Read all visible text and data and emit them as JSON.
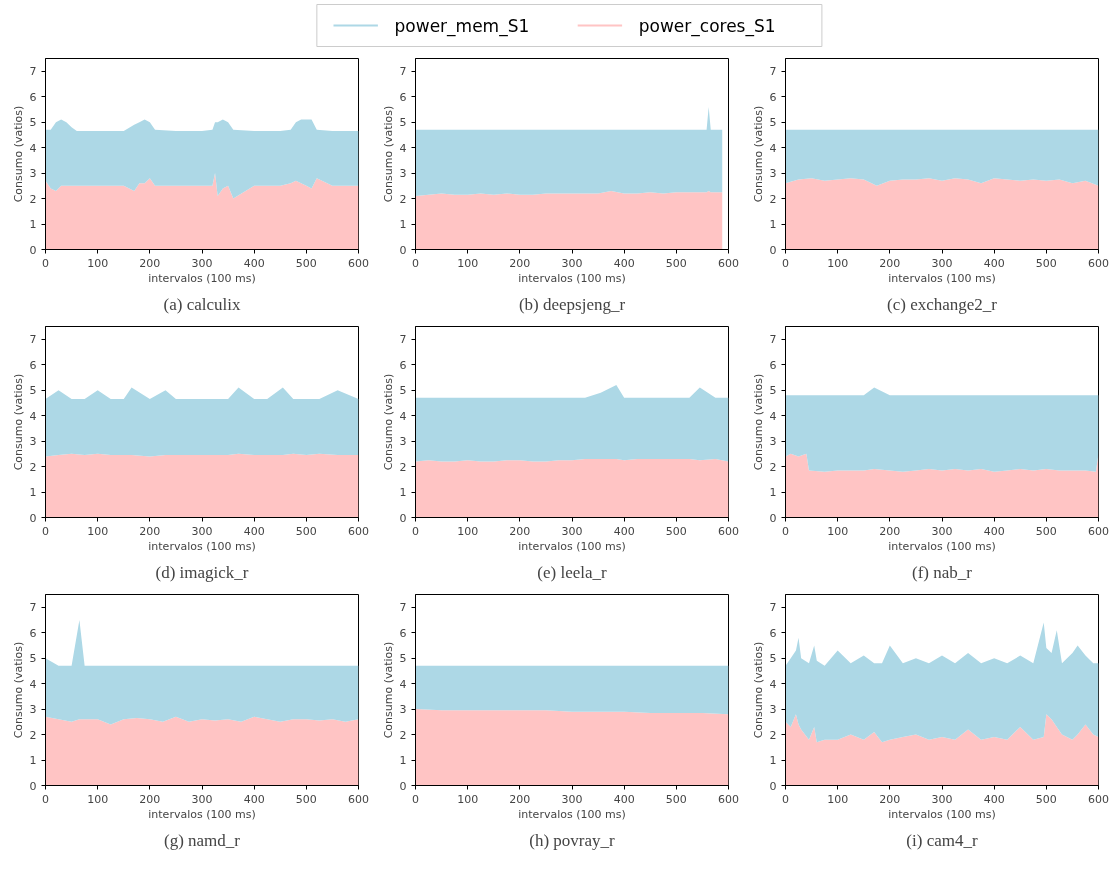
{
  "chart_data": [
    {
      "type": "area",
      "stacked": true,
      "title": "(a) calculix",
      "xlabel": "intervalos (100 ms)",
      "ylabel": "Consumo (vatios)",
      "xlim": [
        0,
        600
      ],
      "xticks": [
        0,
        100,
        200,
        300,
        400,
        500,
        600
      ],
      "ylim": [
        0,
        7.5
      ],
      "yticks": [
        0,
        1,
        2,
        3,
        4,
        5,
        6,
        7
      ],
      "legend": "top",
      "x": [
        0,
        10,
        20,
        30,
        40,
        50,
        60,
        100,
        150,
        170,
        180,
        190,
        200,
        210,
        250,
        300,
        320,
        325,
        330,
        340,
        350,
        360,
        400,
        450,
        470,
        480,
        490,
        500,
        510,
        520,
        550,
        600
      ],
      "series": [
        {
          "name": "power_cores_S1",
          "color": "#ffc4c4",
          "values": [
            2.7,
            2.4,
            2.3,
            2.5,
            2.5,
            2.5,
            2.5,
            2.5,
            2.5,
            2.3,
            2.6,
            2.6,
            2.8,
            2.5,
            2.5,
            2.5,
            2.5,
            3.0,
            2.1,
            2.4,
            2.5,
            2.0,
            2.5,
            2.5,
            2.6,
            2.7,
            2.6,
            2.5,
            2.4,
            2.8,
            2.5,
            2.5
          ]
        },
        {
          "name": "power_mem_S1",
          "color": "#add8e6",
          "values": [
            2.0,
            2.3,
            2.7,
            2.6,
            2.5,
            2.3,
            2.15,
            2.15,
            2.15,
            2.6,
            2.4,
            2.5,
            2.2,
            2.2,
            2.15,
            2.15,
            2.2,
            2.0,
            2.9,
            2.7,
            2.5,
            2.7,
            2.15,
            2.15,
            2.1,
            2.3,
            2.5,
            2.6,
            2.7,
            1.9,
            2.15,
            2.15
          ]
        }
      ]
    },
    {
      "type": "area",
      "stacked": true,
      "title": "(b) deepsjeng_r",
      "xlabel": "intervalos (100 ms)",
      "ylabel": "Consumo (vatios)",
      "xlim": [
        0,
        600
      ],
      "xticks": [
        0,
        100,
        200,
        300,
        400,
        500,
        600
      ],
      "ylim": [
        0,
        7.5
      ],
      "yticks": [
        0,
        1,
        2,
        3,
        4,
        5,
        6,
        7
      ],
      "x": [
        0,
        25,
        50,
        75,
        100,
        125,
        150,
        175,
        200,
        225,
        250,
        275,
        300,
        325,
        350,
        375,
        400,
        425,
        450,
        475,
        500,
        525,
        550,
        558,
        562,
        566,
        588
      ],
      "series": [
        {
          "color": "#ffc4c4",
          "values": [
            2.1,
            2.15,
            2.2,
            2.15,
            2.15,
            2.2,
            2.15,
            2.2,
            2.15,
            2.15,
            2.2,
            2.2,
            2.2,
            2.2,
            2.2,
            2.3,
            2.2,
            2.2,
            2.25,
            2.2,
            2.25,
            2.25,
            2.25,
            2.25,
            2.3,
            2.25,
            2.25
          ]
        },
        {
          "color": "#add8e6",
          "values": [
            2.6,
            2.55,
            2.5,
            2.55,
            2.55,
            2.5,
            2.55,
            2.5,
            2.55,
            2.55,
            2.5,
            2.5,
            2.5,
            2.5,
            2.5,
            2.4,
            2.5,
            2.5,
            2.45,
            2.5,
            2.45,
            2.45,
            2.45,
            2.45,
            3.3,
            2.45,
            2.45
          ]
        }
      ]
    },
    {
      "type": "area",
      "stacked": true,
      "title": "(c) exchange2_r",
      "xlabel": "intervalos (100 ms)",
      "ylabel": "Consumo (vatios)",
      "xlim": [
        0,
        600
      ],
      "xticks": [
        0,
        100,
        200,
        300,
        400,
        500,
        600
      ],
      "ylim": [
        0,
        7.5
      ],
      "yticks": [
        0,
        1,
        2,
        3,
        4,
        5,
        6,
        7
      ],
      "x": [
        0,
        25,
        50,
        75,
        100,
        125,
        150,
        175,
        200,
        225,
        250,
        275,
        300,
        325,
        350,
        375,
        400,
        425,
        450,
        475,
        500,
        525,
        550,
        575,
        600
      ],
      "series": [
        {
          "color": "#ffc4c4",
          "values": [
            2.6,
            2.75,
            2.8,
            2.7,
            2.75,
            2.8,
            2.75,
            2.5,
            2.7,
            2.75,
            2.75,
            2.8,
            2.7,
            2.8,
            2.75,
            2.6,
            2.8,
            2.75,
            2.7,
            2.75,
            2.7,
            2.75,
            2.6,
            2.7,
            2.5
          ]
        },
        {
          "color": "#add8e6",
          "values": [
            2.1,
            1.95,
            1.9,
            2.0,
            1.95,
            1.9,
            1.95,
            2.2,
            2.0,
            1.95,
            1.95,
            1.9,
            2.0,
            1.9,
            1.95,
            2.1,
            1.9,
            1.95,
            2.0,
            1.95,
            2.0,
            1.95,
            2.1,
            2.0,
            2.2
          ]
        }
      ]
    },
    {
      "type": "area",
      "stacked": true,
      "title": "(d) imagick_r",
      "xlabel": "intervalos (100 ms)",
      "ylabel": "Consumo (vatios)",
      "xlim": [
        0,
        600
      ],
      "xticks": [
        0,
        100,
        200,
        300,
        400,
        500,
        600
      ],
      "ylim": [
        0,
        7.5
      ],
      "yticks": [
        0,
        1,
        2,
        3,
        4,
        5,
        6,
        7
      ],
      "x": [
        0,
        25,
        50,
        75,
        100,
        125,
        150,
        165,
        200,
        230,
        250,
        275,
        300,
        325,
        350,
        370,
        400,
        425,
        455,
        475,
        500,
        525,
        560,
        600
      ],
      "series": [
        {
          "color": "#ffc4c4",
          "values": [
            2.4,
            2.45,
            2.5,
            2.45,
            2.5,
            2.45,
            2.45,
            2.45,
            2.4,
            2.45,
            2.45,
            2.45,
            2.45,
            2.45,
            2.45,
            2.5,
            2.45,
            2.45,
            2.45,
            2.5,
            2.45,
            2.5,
            2.45,
            2.45
          ]
        },
        {
          "color": "#add8e6",
          "values": [
            2.25,
            2.55,
            2.15,
            2.2,
            2.5,
            2.2,
            2.2,
            2.65,
            2.25,
            2.55,
            2.2,
            2.2,
            2.2,
            2.2,
            2.2,
            2.6,
            2.2,
            2.2,
            2.65,
            2.15,
            2.2,
            2.15,
            2.55,
            2.2
          ]
        }
      ]
    },
    {
      "type": "area",
      "stacked": true,
      "title": "(e) leela_r",
      "xlabel": "intervalos (100 ms)",
      "ylabel": "Consumo (vatios)",
      "xlim": [
        0,
        600
      ],
      "xticks": [
        0,
        100,
        200,
        300,
        400,
        500,
        600
      ],
      "ylim": [
        0,
        7.5
      ],
      "yticks": [
        0,
        1,
        2,
        3,
        4,
        5,
        6,
        7
      ],
      "x": [
        0,
        25,
        50,
        75,
        100,
        125,
        150,
        175,
        200,
        225,
        250,
        275,
        300,
        325,
        355,
        385,
        400,
        425,
        450,
        475,
        500,
        525,
        545,
        575,
        600
      ],
      "series": [
        {
          "color": "#ffc4c4",
          "values": [
            2.2,
            2.25,
            2.2,
            2.2,
            2.25,
            2.2,
            2.2,
            2.25,
            2.25,
            2.2,
            2.2,
            2.25,
            2.25,
            2.3,
            2.3,
            2.3,
            2.25,
            2.3,
            2.3,
            2.3,
            2.3,
            2.3,
            2.25,
            2.3,
            2.2
          ]
        },
        {
          "color": "#add8e6",
          "values": [
            2.5,
            2.45,
            2.5,
            2.5,
            2.45,
            2.5,
            2.5,
            2.45,
            2.45,
            2.5,
            2.5,
            2.45,
            2.45,
            2.4,
            2.6,
            2.9,
            2.45,
            2.4,
            2.4,
            2.4,
            2.4,
            2.4,
            2.85,
            2.4,
            2.5
          ]
        }
      ]
    },
    {
      "type": "area",
      "stacked": true,
      "title": "(f) nab_r",
      "xlabel": "intervalos (100 ms)",
      "ylabel": "Consumo (vatios)",
      "xlim": [
        0,
        600
      ],
      "xticks": [
        0,
        100,
        200,
        300,
        400,
        500,
        600
      ],
      "ylim": [
        0,
        7.5
      ],
      "yticks": [
        0,
        1,
        2,
        3,
        4,
        5,
        6,
        7
      ],
      "x": [
        0,
        10,
        25,
        40,
        45,
        75,
        100,
        125,
        150,
        170,
        200,
        225,
        250,
        275,
        300,
        325,
        350,
        375,
        400,
        425,
        450,
        475,
        500,
        525,
        550,
        575,
        595,
        600
      ],
      "series": [
        {
          "color": "#ffc4c4",
          "values": [
            2.4,
            2.5,
            2.4,
            2.5,
            1.85,
            1.8,
            1.85,
            1.85,
            1.85,
            1.9,
            1.85,
            1.8,
            1.85,
            1.9,
            1.85,
            1.9,
            1.85,
            1.9,
            1.8,
            1.85,
            1.9,
            1.85,
            1.9,
            1.85,
            1.85,
            1.85,
            1.8,
            2.5
          ]
        },
        {
          "color": "#add8e6",
          "values": [
            2.4,
            2.3,
            2.4,
            2.3,
            2.95,
            3.0,
            2.95,
            2.95,
            2.95,
            3.2,
            2.95,
            3.0,
            2.95,
            2.9,
            2.95,
            2.9,
            2.95,
            2.9,
            3.0,
            2.95,
            2.9,
            2.95,
            2.9,
            2.95,
            2.95,
            2.95,
            3.0,
            2.3
          ]
        }
      ]
    },
    {
      "type": "area",
      "stacked": true,
      "title": "(g) namd_r",
      "xlabel": "intervalos (100 ms)",
      "ylabel": "Consumo (vatios)",
      "xlim": [
        0,
        600
      ],
      "xticks": [
        0,
        100,
        200,
        300,
        400,
        500,
        600
      ],
      "ylim": [
        0,
        7.5
      ],
      "yticks": [
        0,
        1,
        2,
        3,
        4,
        5,
        6,
        7
      ],
      "x": [
        0,
        25,
        50,
        65,
        75,
        100,
        125,
        150,
        175,
        200,
        225,
        250,
        275,
        300,
        325,
        350,
        375,
        400,
        425,
        450,
        475,
        500,
        525,
        550,
        575,
        600
      ],
      "series": [
        {
          "color": "#ffc4c4",
          "values": [
            2.7,
            2.6,
            2.5,
            2.6,
            2.6,
            2.6,
            2.4,
            2.6,
            2.65,
            2.6,
            2.5,
            2.7,
            2.5,
            2.6,
            2.55,
            2.6,
            2.5,
            2.7,
            2.6,
            2.5,
            2.6,
            2.6,
            2.55,
            2.6,
            2.5,
            2.6
          ]
        },
        {
          "color": "#add8e6",
          "values": [
            2.3,
            2.1,
            2.2,
            3.9,
            2.1,
            2.1,
            2.3,
            2.1,
            2.05,
            2.1,
            2.2,
            2.0,
            2.2,
            2.1,
            2.15,
            2.1,
            2.2,
            2.0,
            2.1,
            2.2,
            2.1,
            2.1,
            2.15,
            2.1,
            2.2,
            2.1
          ]
        }
      ]
    },
    {
      "type": "area",
      "stacked": true,
      "title": "(h) povray_r",
      "xlabel": "intervalos (100 ms)",
      "ylabel": "Consumo (vatios)",
      "xlim": [
        0,
        600
      ],
      "xticks": [
        0,
        100,
        200,
        300,
        400,
        500,
        600
      ],
      "ylim": [
        0,
        7.5
      ],
      "yticks": [
        0,
        1,
        2,
        3,
        4,
        5,
        6,
        7
      ],
      "x": [
        0,
        50,
        100,
        150,
        200,
        250,
        300,
        350,
        400,
        450,
        500,
        550,
        600
      ],
      "series": [
        {
          "color": "#ffc4c4",
          "values": [
            3.0,
            2.95,
            2.95,
            2.95,
            2.95,
            2.95,
            2.9,
            2.9,
            2.9,
            2.85,
            2.85,
            2.85,
            2.8
          ]
        },
        {
          "color": "#add8e6",
          "values": [
            1.7,
            1.75,
            1.75,
            1.75,
            1.75,
            1.75,
            1.8,
            1.8,
            1.8,
            1.85,
            1.85,
            1.85,
            1.9
          ]
        }
      ]
    },
    {
      "type": "area",
      "stacked": true,
      "title": "(i) cam4_r",
      "xlabel": "intervalos (100 ms)",
      "ylabel": "Consumo (vatios)",
      "xlim": [
        0,
        600
      ],
      "xticks": [
        0,
        100,
        200,
        300,
        400,
        500,
        600
      ],
      "ylim": [
        0,
        7.5
      ],
      "yticks": [
        0,
        1,
        2,
        3,
        4,
        5,
        6,
        7
      ],
      "x": [
        0,
        10,
        20,
        25,
        30,
        45,
        55,
        60,
        75,
        100,
        125,
        150,
        170,
        185,
        200,
        225,
        250,
        275,
        300,
        325,
        350,
        375,
        400,
        425,
        450,
        475,
        495,
        500,
        510,
        520,
        530,
        550,
        560,
        575,
        590,
        600
      ],
      "series": [
        {
          "color": "#ffc4c4",
          "values": [
            2.5,
            2.3,
            2.8,
            2.4,
            2.2,
            1.8,
            2.3,
            1.7,
            1.8,
            1.8,
            2.0,
            1.8,
            2.1,
            1.7,
            1.8,
            1.9,
            2.0,
            1.8,
            1.9,
            1.8,
            2.2,
            1.8,
            1.9,
            1.8,
            2.3,
            1.8,
            1.9,
            2.8,
            2.6,
            2.3,
            2.0,
            1.8,
            2.0,
            2.4,
            2.0,
            1.9
          ]
        },
        {
          "color": "#add8e6",
          "values": [
            2.2,
            2.7,
            2.5,
            3.4,
            2.8,
            3.0,
            3.2,
            3.2,
            2.9,
            3.5,
            2.8,
            3.3,
            2.7,
            3.1,
            3.7,
            2.9,
            3.0,
            3.0,
            3.2,
            3.0,
            3.0,
            3.0,
            3.1,
            3.0,
            2.8,
            3.0,
            4.5,
            2.6,
            2.6,
            3.8,
            2.8,
            3.4,
            3.5,
            2.7,
            2.8,
            2.9
          ]
        }
      ]
    }
  ]
}
